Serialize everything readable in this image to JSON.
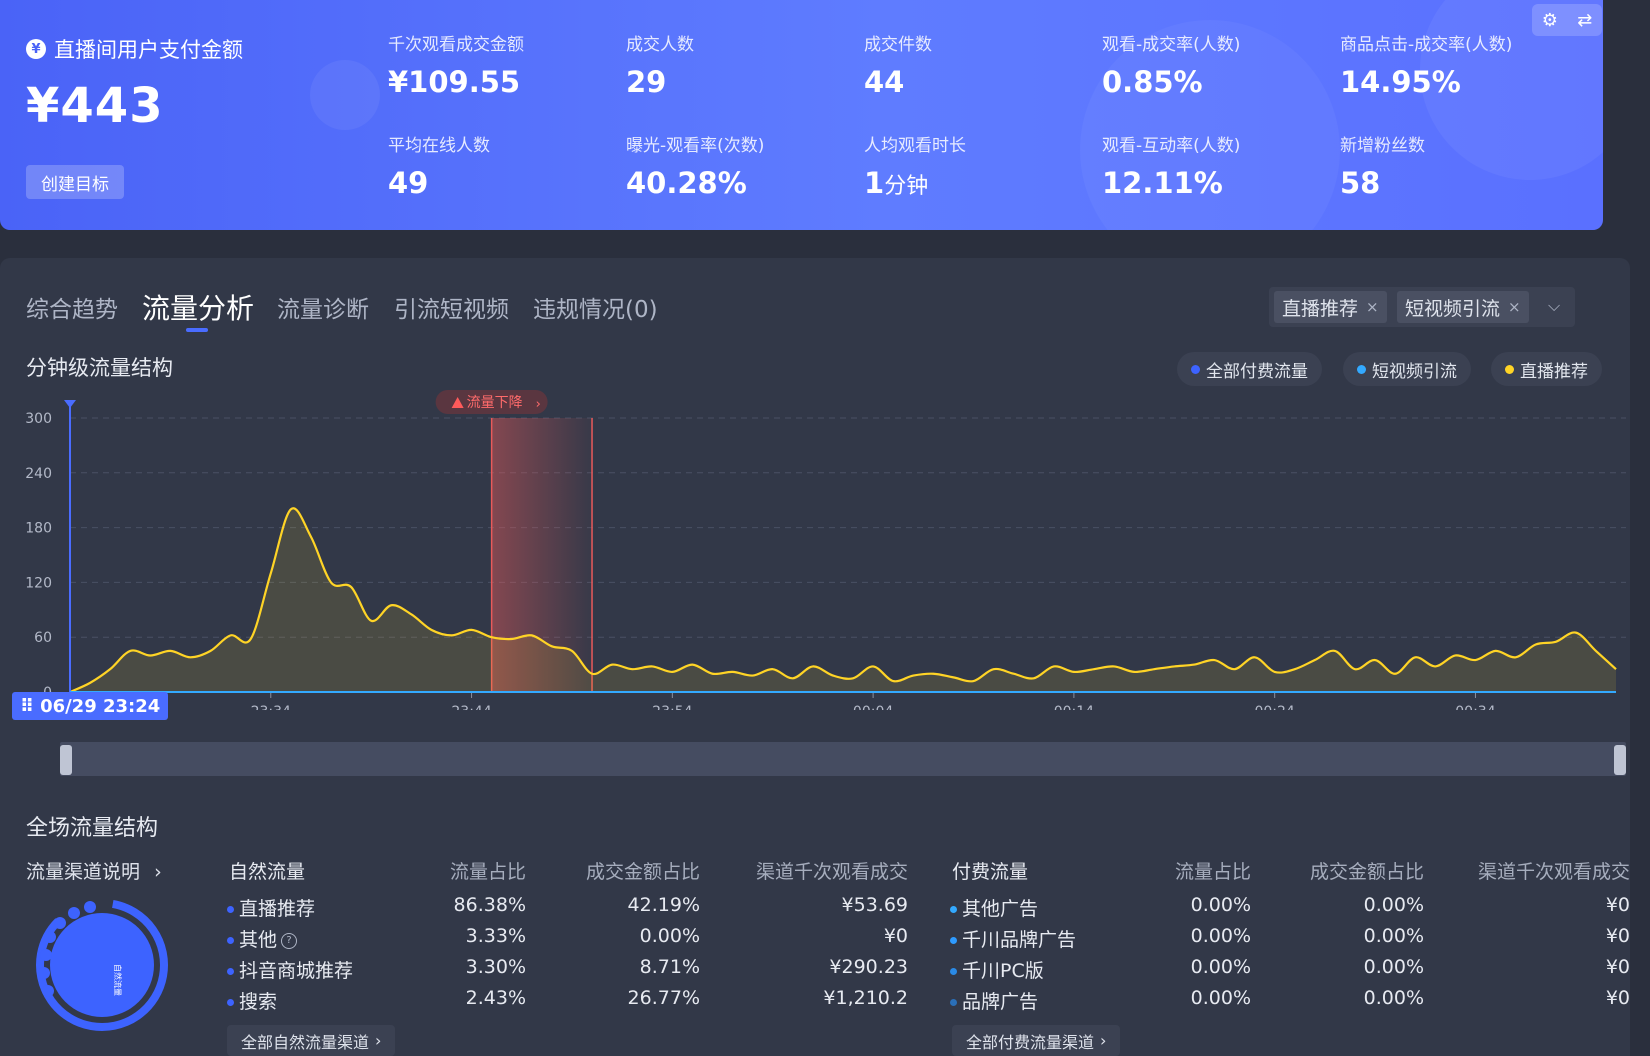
{
  "summary": {
    "title": "直播间用户支付金额",
    "currency_icon": "¥",
    "amount": "¥443",
    "create_target": "创建目标",
    "metrics": [
      {
        "label": "千次观看成交金额",
        "value": "¥109.55"
      },
      {
        "label": "成交人数",
        "value": "29"
      },
      {
        "label": "成交件数",
        "value": "44"
      },
      {
        "label": "观看-成交率(人数)",
        "value": "0.85%"
      },
      {
        "label": "商品点击-成交率(人数)",
        "value": "14.95%"
      },
      {
        "label": "平均在线人数",
        "value": "49"
      },
      {
        "label": "曝光-观看率(次数)",
        "value": "40.28%"
      },
      {
        "label": "人均观看时长",
        "value": "1",
        "unit": "分钟"
      },
      {
        "label": "观看-互动率(人数)",
        "value": "12.11%"
      },
      {
        "label": "新增粉丝数",
        "value": "58"
      }
    ],
    "tool_icons": [
      "gear-icon",
      "swap-icon"
    ]
  },
  "tabs": [
    {
      "label": "综合趋势",
      "active": false
    },
    {
      "label": "流量分析",
      "active": true
    },
    {
      "label": "流量诊断",
      "active": false
    },
    {
      "label": "引流短视频",
      "active": false
    },
    {
      "label": "违规情况(0)",
      "active": false
    }
  ],
  "filters": {
    "chips": [
      "直播推荐",
      "短视频引流"
    ],
    "close_glyph": "×",
    "dropdown_glyph": "⌵"
  },
  "chart_section": {
    "title": "分钟级流量结构",
    "legend": [
      {
        "label": "全部付费流量",
        "color": "#3d63ff"
      },
      {
        "label": "短视频引流",
        "color": "#33a9ff"
      },
      {
        "label": "直播推荐",
        "color": "#ffd426"
      }
    ],
    "alert_label": "流量下降",
    "start_time": "06/29 23:24"
  },
  "chart_data": {
    "type": "area",
    "title": "分钟级流量结构",
    "ylim": [
      0,
      300
    ],
    "yticks": [
      0,
      60,
      120,
      180,
      240,
      300
    ],
    "xticks": [
      "23:34",
      "23:44",
      "23:54",
      "00:04",
      "00:14",
      "00:24",
      "00:34"
    ],
    "x_start": "23:24",
    "grid": true,
    "alert_range": [
      "23:45",
      "23:50"
    ],
    "series": [
      {
        "name": "直播推荐",
        "color": "#ffd426",
        "minutes_from_start": [
          0,
          1,
          2,
          3,
          4,
          5,
          6,
          7,
          8,
          9,
          10,
          11,
          12,
          13,
          14,
          15,
          16,
          17,
          18,
          19,
          20,
          21,
          22,
          23,
          24,
          25,
          26,
          27,
          28,
          29,
          30,
          31,
          32,
          33,
          34,
          35,
          36,
          37,
          38,
          39,
          40,
          41,
          42,
          43,
          44,
          45,
          46,
          47,
          48,
          49,
          50,
          51,
          52,
          53,
          54,
          55,
          56,
          57,
          58,
          59,
          60,
          61,
          62,
          63,
          64,
          65,
          66,
          67,
          68,
          69,
          70,
          71,
          72,
          73,
          74,
          75,
          76,
          77
        ],
        "values": [
          0,
          10,
          25,
          45,
          40,
          45,
          38,
          45,
          62,
          58,
          130,
          200,
          170,
          120,
          115,
          78,
          95,
          85,
          68,
          62,
          68,
          60,
          58,
          62,
          50,
          45,
          20,
          30,
          25,
          28,
          22,
          30,
          20,
          22,
          18,
          25,
          15,
          28,
          18,
          15,
          28,
          12,
          18,
          20,
          16,
          12,
          25,
          20,
          15,
          28,
          22,
          25,
          28,
          22,
          25,
          28,
          30,
          35,
          25,
          38,
          22,
          25,
          35,
          45,
          25,
          35,
          20,
          38,
          28,
          40,
          35,
          45,
          38,
          52,
          55,
          65,
          45,
          25
        ]
      }
    ]
  },
  "overall": {
    "title": "全场流量结构",
    "channel_explain": "流量渠道说明",
    "donut_center": "自然流量",
    "natural": {
      "header": [
        "自然流量",
        "流量占比",
        "成交金额占比",
        "渠道千次观看成交"
      ],
      "rows": [
        {
          "name": "直播推荐",
          "flow": "86.38%",
          "gmv": "42.19%",
          "kgmv": "¥53.69",
          "dot": "#3d63ff"
        },
        {
          "name": "其他",
          "flow": "3.33%",
          "gmv": "0.00%",
          "kgmv": "¥0",
          "dot": "#3d63ff",
          "help": "?"
        },
        {
          "name": "抖音商城推荐",
          "flow": "3.30%",
          "gmv": "8.71%",
          "kgmv": "¥290.23",
          "dot": "#3d63ff"
        },
        {
          "name": "搜索",
          "flow": "2.43%",
          "gmv": "26.77%",
          "kgmv": "¥1,210.2",
          "dot": "#3d63ff"
        }
      ],
      "all_link": "全部自然流量渠道"
    },
    "paid": {
      "header": [
        "付费流量",
        "流量占比",
        "成交金额占比",
        "渠道千次观看成交"
      ],
      "rows": [
        {
          "name": "其他广告",
          "flow": "0.00%",
          "gmv": "0.00%",
          "kgmv": "¥0",
          "dot": "#33a9ff"
        },
        {
          "name": "千川品牌广告",
          "flow": "0.00%",
          "gmv": "0.00%",
          "kgmv": "¥0",
          "dot": "#2e9bff"
        },
        {
          "name": "千川PC版",
          "flow": "0.00%",
          "gmv": "0.00%",
          "kgmv": "¥0",
          "dot": "#2a8ae6"
        },
        {
          "name": "品牌广告",
          "flow": "0.00%",
          "gmv": "0.00%",
          "kgmv": "¥0",
          "dot": "#2a6fb8"
        }
      ],
      "all_link": "全部付费流量渠道"
    }
  }
}
